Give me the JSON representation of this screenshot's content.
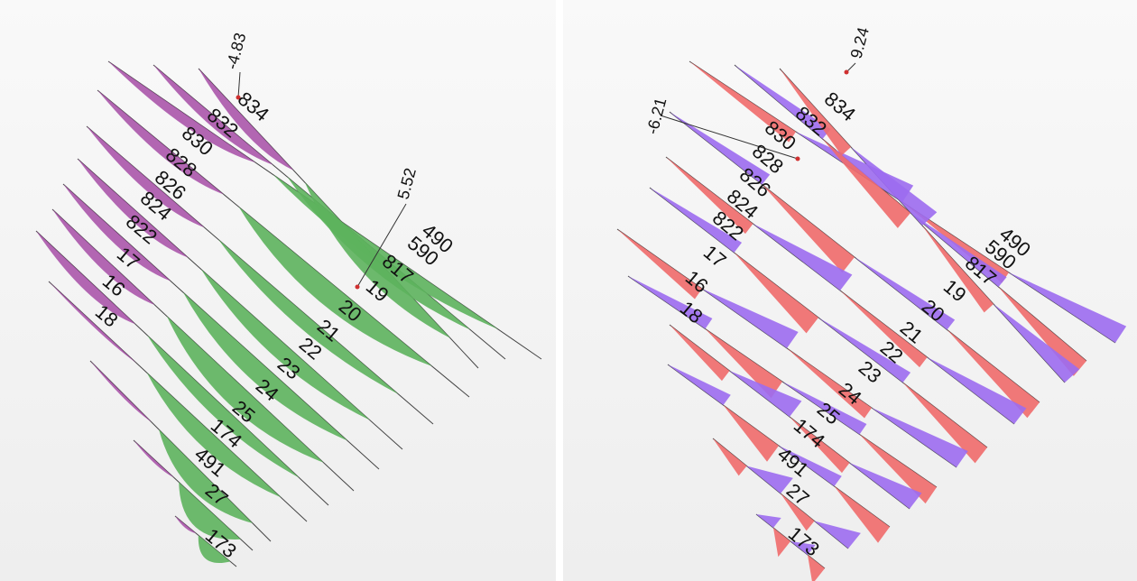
{
  "colors": {
    "axial_tension": "#5db35d",
    "axial_compression": "#a64ca6",
    "moment_positive": "#f06a6a",
    "moment_negative": "#9c6cf0",
    "member_line": "#444444",
    "background_top": "#f9f9f9",
    "background_bottom": "#eeeeee"
  },
  "left_panel": {
    "diagram": "member force diagram",
    "extreme_labels": {
      "min": "-4.83",
      "max": "5.52"
    },
    "members": [
      {
        "id": "834",
        "label": "834"
      },
      {
        "id": "832",
        "label": "832"
      },
      {
        "id": "830",
        "label": "830"
      },
      {
        "id": "828",
        "label": "828"
      },
      {
        "id": "826",
        "label": "826"
      },
      {
        "id": "824",
        "label": "824"
      },
      {
        "id": "822",
        "label": "822"
      },
      {
        "id": "17",
        "label": "17"
      },
      {
        "id": "16",
        "label": "16"
      },
      {
        "id": "18",
        "label": "18"
      },
      {
        "id": "490",
        "label": "490"
      },
      {
        "id": "590",
        "label": "590"
      },
      {
        "id": "817",
        "label": "817"
      },
      {
        "id": "19",
        "label": "19"
      },
      {
        "id": "20",
        "label": "20"
      },
      {
        "id": "21",
        "label": "21"
      },
      {
        "id": "22",
        "label": "22"
      },
      {
        "id": "23",
        "label": "23"
      },
      {
        "id": "24",
        "label": "24"
      },
      {
        "id": "25",
        "label": "25"
      },
      {
        "id": "174",
        "label": "174"
      },
      {
        "id": "491",
        "label": "491"
      },
      {
        "id": "27",
        "label": "27"
      },
      {
        "id": "173",
        "label": "173"
      }
    ]
  },
  "right_panel": {
    "diagram": "member moment diagram",
    "extreme_labels": {
      "min": "-6.21",
      "max": "9.24"
    },
    "members": [
      {
        "id": "834",
        "label": "834"
      },
      {
        "id": "832",
        "label": "832"
      },
      {
        "id": "830",
        "label": "830"
      },
      {
        "id": "828",
        "label": "828"
      },
      {
        "id": "826",
        "label": "826"
      },
      {
        "id": "824",
        "label": "824"
      },
      {
        "id": "822",
        "label": "822"
      },
      {
        "id": "17",
        "label": "17"
      },
      {
        "id": "16",
        "label": "16"
      },
      {
        "id": "18",
        "label": "18"
      },
      {
        "id": "490",
        "label": "490"
      },
      {
        "id": "590",
        "label": "590"
      },
      {
        "id": "817",
        "label": "817"
      },
      {
        "id": "19",
        "label": "19"
      },
      {
        "id": "20",
        "label": "20"
      },
      {
        "id": "21",
        "label": "21"
      },
      {
        "id": "22",
        "label": "22"
      },
      {
        "id": "23",
        "label": "23"
      },
      {
        "id": "24",
        "label": "24"
      },
      {
        "id": "25",
        "label": "25"
      },
      {
        "id": "174",
        "label": "174"
      },
      {
        "id": "491",
        "label": "491"
      },
      {
        "id": "27",
        "label": "27"
      },
      {
        "id": "173",
        "label": "173"
      }
    ]
  }
}
